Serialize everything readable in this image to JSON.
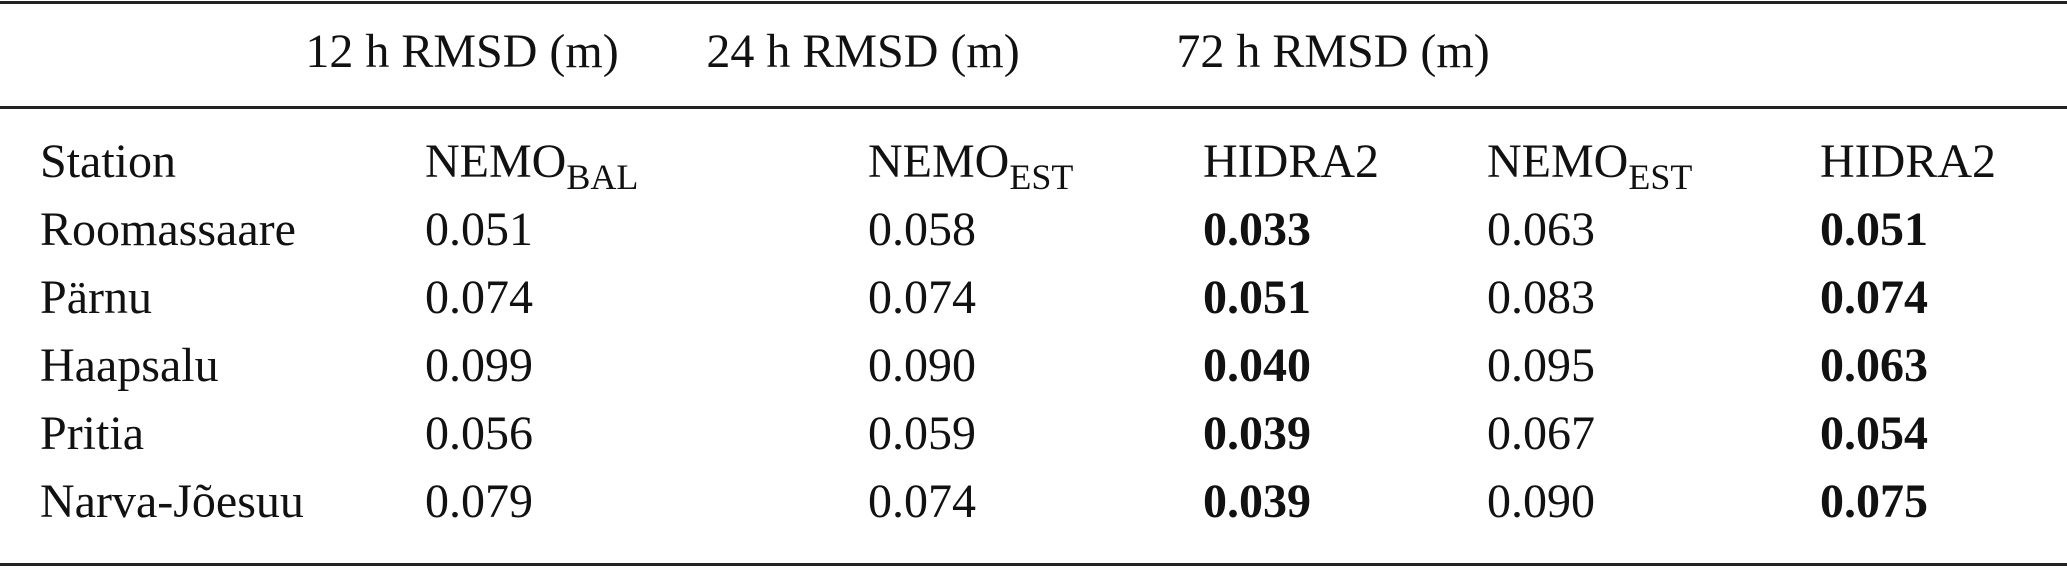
{
  "table": {
    "groups": [
      "12 h RMSD (m)",
      "24 h RMSD (m)",
      "72 h RMSD (m)"
    ],
    "columns": [
      {
        "text": "Station"
      },
      {
        "text": "NEMO",
        "sub": "BAL"
      },
      {
        "text": "NEMO",
        "sub": "EST"
      },
      {
        "text": "HIDRA2"
      },
      {
        "text": "NEMO",
        "sub": "EST"
      },
      {
        "text": "HIDRA2"
      }
    ],
    "bold_columns": [
      3,
      5
    ],
    "rows": [
      [
        "Roomassaare",
        "0.051",
        "0.058",
        "0.033",
        "0.063",
        "0.051"
      ],
      [
        "Pärnu",
        "0.074",
        "0.074",
        "0.051",
        "0.083",
        "0.074"
      ],
      [
        "Haapsalu",
        "0.099",
        "0.090",
        "0.040",
        "0.095",
        "0.063"
      ],
      [
        "Pritia",
        "0.056",
        "0.059",
        "0.039",
        "0.067",
        "0.054"
      ],
      [
        "Narva-Jõesuu",
        "0.079",
        "0.074",
        "0.039",
        "0.090",
        "0.075"
      ]
    ]
  }
}
